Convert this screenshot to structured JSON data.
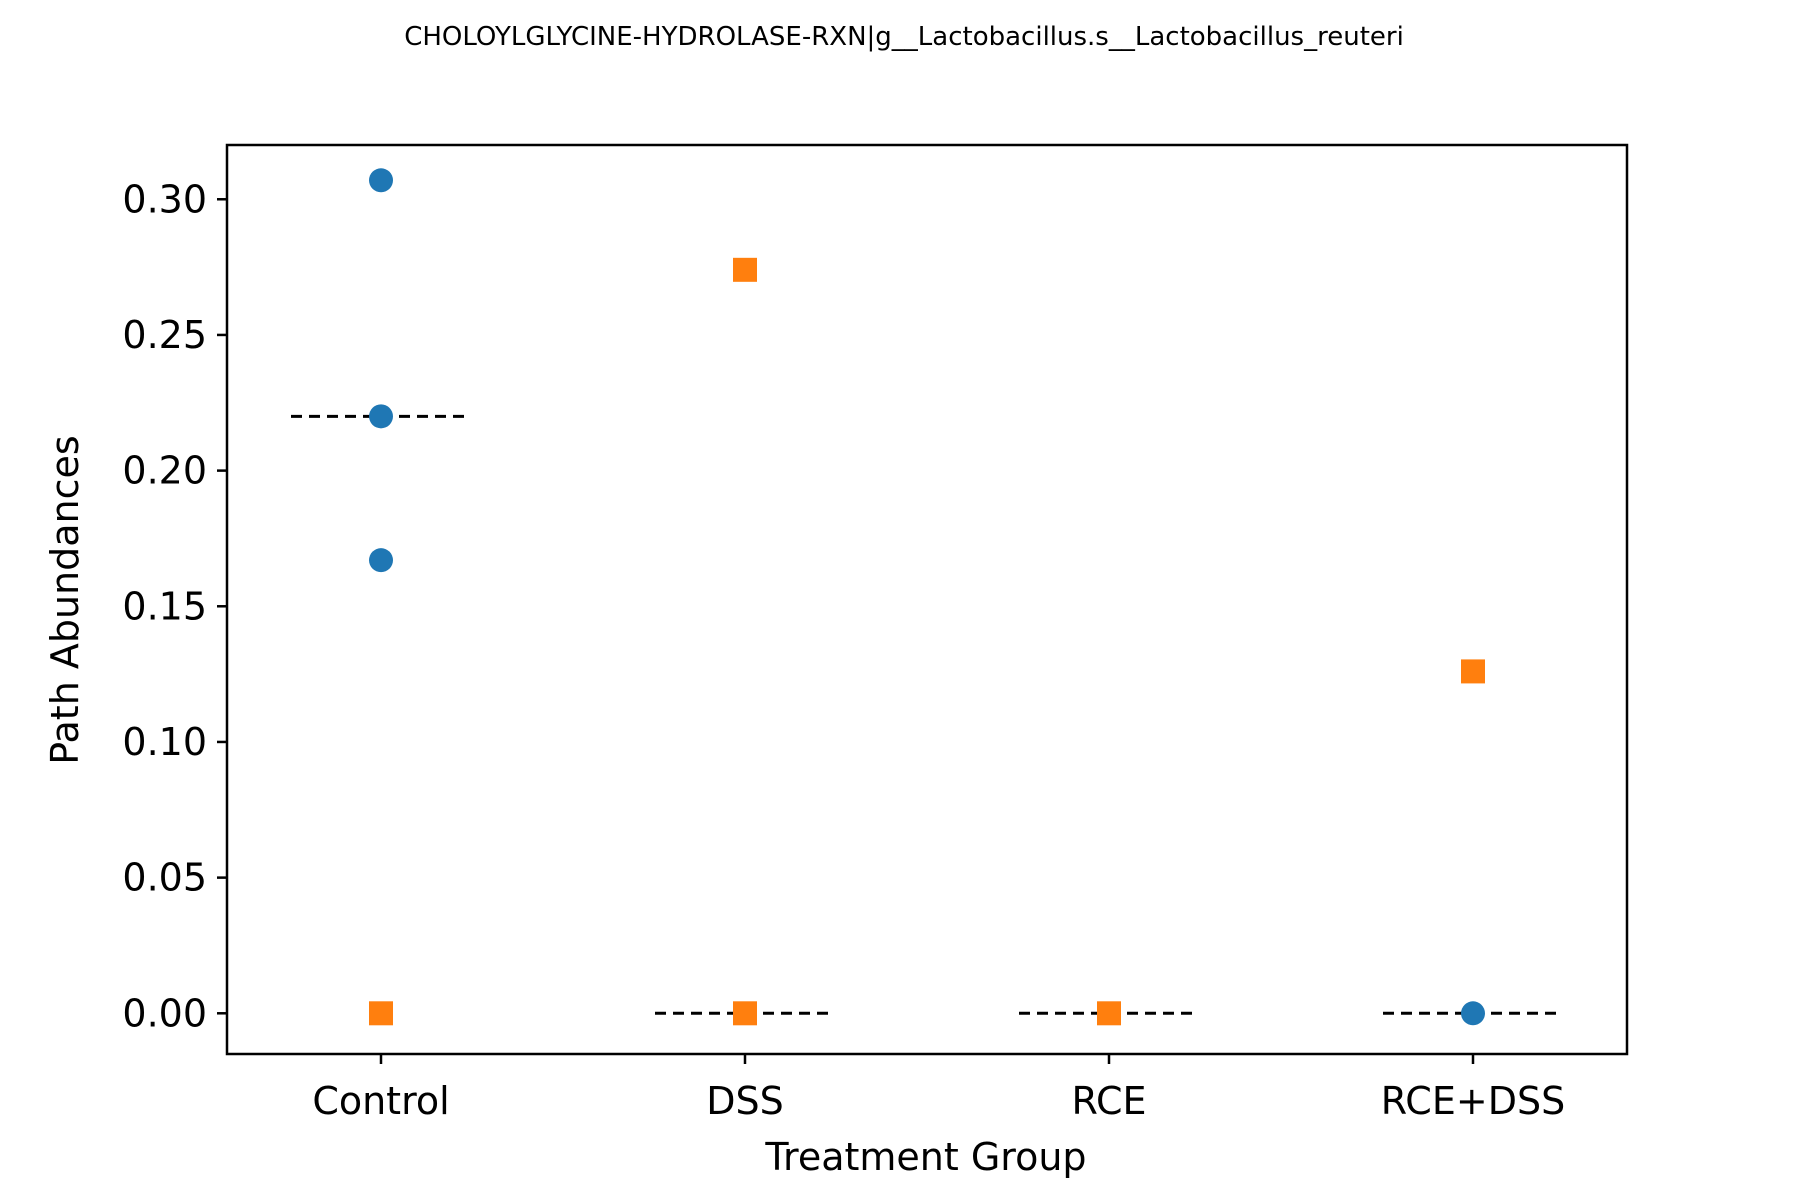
{
  "chart_data": {
    "type": "scatter",
    "title": "CHOLOYLGLYCINE-HYDROLASE-RXN|g__Lactobacillus.s__Lactobacillus_reuteri",
    "xlabel": "Treatment Group",
    "ylabel": "Path Abundances",
    "categories": [
      "Control",
      "DSS",
      "RCE",
      "RCE+DSS"
    ],
    "y_ticks": [
      "0.00",
      "0.05",
      "0.10",
      "0.15",
      "0.20",
      "0.25",
      "0.30"
    ],
    "ylim": [
      -0.015,
      0.32
    ],
    "grid": false,
    "legend": "none",
    "series": [
      {
        "marker": "circle",
        "color": "#1f77b4",
        "points": [
          {
            "x": "Control",
            "y": 0.307
          },
          {
            "x": "Control",
            "y": 0.22
          },
          {
            "x": "Control",
            "y": 0.167
          },
          {
            "x": "RCE+DSS",
            "y": 0.0
          }
        ]
      },
      {
        "marker": "square",
        "color": "#ff7f0e",
        "points": [
          {
            "x": "Control",
            "y": 0.0
          },
          {
            "x": "DSS",
            "y": 0.274
          },
          {
            "x": "DSS",
            "y": 0.0
          },
          {
            "x": "RCE",
            "y": 0.0
          },
          {
            "x": "RCE+DSS",
            "y": 0.126
          }
        ]
      }
    ],
    "medians": [
      {
        "x": "Control",
        "y": 0.22
      },
      {
        "x": "DSS",
        "y": 0.0
      },
      {
        "x": "RCE",
        "y": 0.0
      },
      {
        "x": "RCE+DSS",
        "y": 0.0
      }
    ]
  }
}
